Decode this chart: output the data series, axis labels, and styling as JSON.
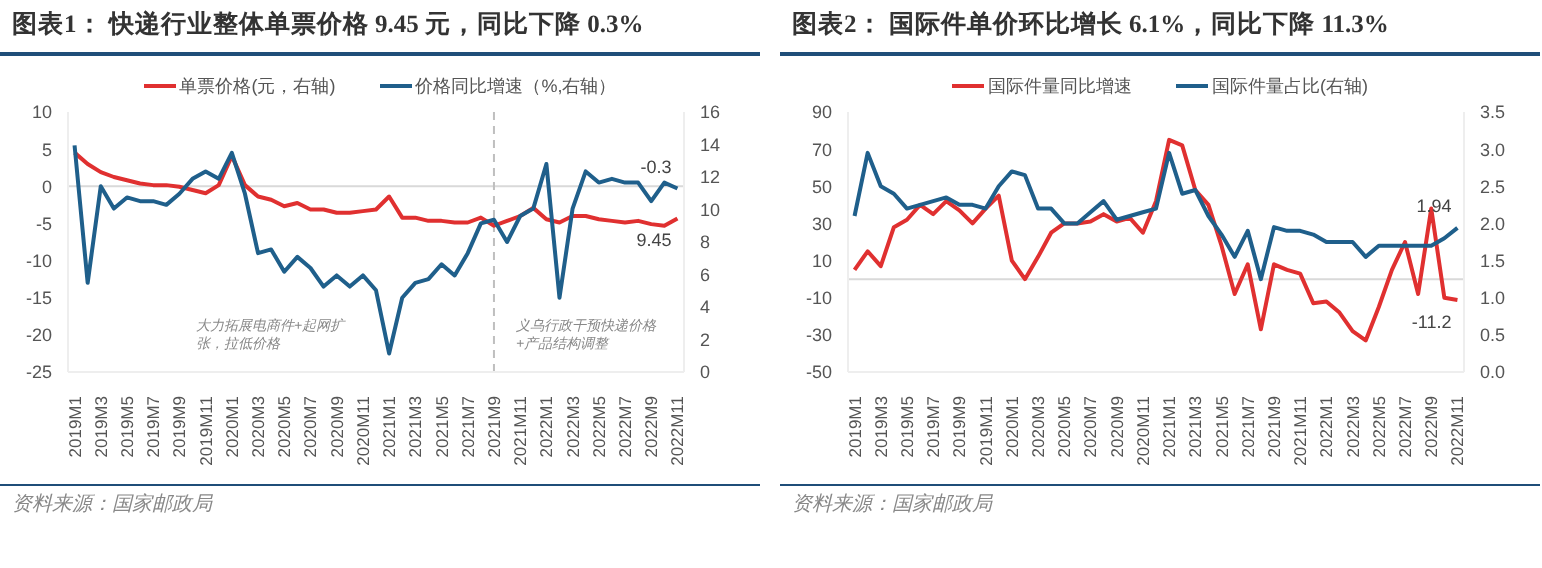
{
  "chart_data": [
    {
      "type": "line",
      "title": "图表1：  快递行业整体单票价格 9.45 元，同比下降 0.3%",
      "categories": [
        "2019M1",
        null,
        "2019M3",
        null,
        "2019M5",
        null,
        "2019M7",
        null,
        "2019M9",
        null,
        "2019M11",
        null,
        "2020M1",
        null,
        "2020M3",
        null,
        "2020M5",
        null,
        "2020M7",
        null,
        "2020M9",
        null,
        "2020M11",
        null,
        "2021M1",
        null,
        "2021M3",
        null,
        "2021M5",
        null,
        "2021M7",
        null,
        "2021M9",
        null,
        "2021M11",
        null,
        "2022M1",
        null,
        "2022M3",
        null,
        "2022M5",
        null,
        "2022M7",
        null,
        "2022M9",
        null,
        "2022M11"
      ],
      "series": [
        {
          "name": "单票价格(元，右轴)",
          "color": "#e03030",
          "axis": "y2",
          "values": [
            13.5,
            12.8,
            12.3,
            12,
            11.8,
            11.6,
            11.5,
            11.5,
            11.4,
            11.2,
            11,
            11.5,
            13.3,
            11.5,
            10.8,
            10.6,
            10.2,
            10.4,
            10,
            10,
            9.8,
            9.8,
            9.9,
            10,
            10.8,
            9.5,
            9.5,
            9.3,
            9.3,
            9.2,
            9.2,
            9.5,
            9,
            9.3,
            9.6,
            10.1,
            9.4,
            9.2,
            9.6,
            9.6,
            9.4,
            9.3,
            9.2,
            9.3,
            9.1,
            9,
            9.45
          ],
          "value_labels": [
            null,
            null,
            null,
            null,
            null,
            null,
            null,
            null,
            null,
            null,
            null,
            null,
            null,
            null,
            null,
            null,
            null,
            null,
            null,
            null,
            null,
            null,
            null,
            null,
            null,
            null,
            null,
            null,
            null,
            null,
            null,
            null,
            null,
            null,
            null,
            null,
            null,
            null,
            null,
            null,
            null,
            null,
            null,
            null,
            null,
            null,
            "9.45"
          ]
        },
        {
          "name": "价格同比增速（%,右轴）",
          "color": "#1f5f8b",
          "values": [
            5.5,
            -13,
            0,
            -3,
            -1.5,
            -2,
            -2,
            -2.5,
            -1,
            1,
            2,
            1,
            4.5,
            -1,
            -9,
            -8.5,
            -11.5,
            -9.5,
            -11,
            -13.5,
            -12,
            -13.5,
            -12,
            -14,
            -22.5,
            -15,
            -13,
            -12.5,
            -10.5,
            -12,
            -9,
            -5,
            -4.5,
            -7.5,
            -4,
            -3,
            3,
            -15,
            -3,
            2,
            0.5,
            1,
            0.5,
            0.5,
            -2,
            0.5,
            -0.3
          ],
          "value_labels": [
            null,
            null,
            null,
            null,
            null,
            null,
            null,
            null,
            null,
            null,
            null,
            null,
            null,
            null,
            null,
            null,
            null,
            null,
            null,
            null,
            null,
            null,
            null,
            null,
            null,
            null,
            null,
            null,
            null,
            null,
            null,
            null,
            null,
            null,
            null,
            null,
            null,
            null,
            null,
            null,
            null,
            null,
            null,
            null,
            null,
            null,
            "-0.3"
          ]
        }
      ],
      "ylim": [
        -25,
        10
      ],
      "yticks": [
        -25,
        -20,
        -15,
        -10,
        -5,
        0,
        5,
        10
      ],
      "y2lim": [
        0,
        16
      ],
      "y2ticks": [
        0,
        2,
        4,
        6,
        8,
        10,
        12,
        14,
        16
      ],
      "ref_lines": [
        {
          "axis": "y",
          "value": 0,
          "color": "#d9d9d9"
        },
        {
          "axis": "x",
          "value": "2021M9",
          "color": "#bfbfbf",
          "line_style": "dashed"
        }
      ],
      "legend": "top",
      "annotations": [
        "大力拓展电商件+起网扩张，拉低价格",
        "义乌行政干预快递价格+产品结构调整",
        "资料来源：国家邮政局"
      ]
    },
    {
      "type": "line",
      "title": "图表2：  国际件单价环比增长 6.1%，同比下降 11.3%",
      "categories": [
        "2019M1",
        null,
        "2019M3",
        null,
        "2019M5",
        null,
        "2019M7",
        null,
        "2019M9",
        null,
        "2019M11",
        null,
        "2020M1",
        null,
        "2020M3",
        null,
        "2020M5",
        null,
        "2020M7",
        null,
        "2020M9",
        null,
        "2020M11",
        null,
        "2021M1",
        null,
        "2021M3",
        null,
        "2021M5",
        null,
        "2021M7",
        null,
        "2021M9",
        null,
        "2021M11",
        null,
        "2022M1",
        null,
        "2022M3",
        null,
        "2022M5",
        null,
        "2022M7",
        null,
        "2022M9",
        null,
        "2022M11"
      ],
      "series": [
        {
          "name": "国际件量同比增速",
          "color": "#e03030",
          "values": [
            5,
            15,
            7,
            28,
            32,
            40,
            35,
            42,
            37,
            30,
            38,
            45,
            10,
            0,
            12,
            25,
            30,
            30,
            31,
            35,
            31,
            33,
            25,
            42,
            75,
            72,
            48,
            40,
            18,
            -8,
            8,
            -27,
            8,
            5,
            3,
            -13,
            -12,
            -18,
            -28,
            -33,
            -15,
            5,
            20,
            -8,
            38,
            -10,
            -11.2
          ],
          "value_labels": [
            null,
            null,
            null,
            null,
            null,
            null,
            null,
            null,
            null,
            null,
            null,
            null,
            null,
            null,
            null,
            null,
            null,
            null,
            null,
            null,
            null,
            null,
            null,
            null,
            null,
            null,
            null,
            null,
            null,
            null,
            null,
            null,
            null,
            null,
            null,
            null,
            null,
            null,
            null,
            null,
            null,
            null,
            null,
            null,
            null,
            null,
            "-11.2"
          ]
        },
        {
          "name": "国际件量占比(右轴)",
          "color": "#1f5f8b",
          "axis": "y2",
          "values": [
            2.1,
            2.95,
            2.5,
            2.4,
            2.2,
            2.25,
            2.3,
            2.35,
            2.25,
            2.25,
            2.2,
            2.5,
            2.7,
            2.65,
            2.2,
            2.2,
            2,
            2,
            2.15,
            2.3,
            2.05,
            2.1,
            2.15,
            2.2,
            2.95,
            2.4,
            2.45,
            2.1,
            1.85,
            1.55,
            1.9,
            1.25,
            1.95,
            1.9,
            1.9,
            1.85,
            1.75,
            1.75,
            1.75,
            1.55,
            1.7,
            1.7,
            1.7,
            1.7,
            1.7,
            1.8,
            1.94
          ],
          "value_labels": [
            null,
            null,
            null,
            null,
            null,
            null,
            null,
            null,
            null,
            null,
            null,
            null,
            null,
            null,
            null,
            null,
            null,
            null,
            null,
            null,
            null,
            null,
            null,
            null,
            null,
            null,
            null,
            null,
            null,
            null,
            null,
            null,
            null,
            null,
            null,
            null,
            null,
            null,
            null,
            null,
            null,
            null,
            null,
            null,
            null,
            null,
            "1.94"
          ]
        }
      ],
      "ylim": [
        -50,
        90
      ],
      "yticks": [
        -50,
        -30,
        -10,
        10,
        30,
        50,
        70,
        90
      ],
      "y2lim": [
        0,
        3.5
      ],
      "y2ticks": [
        {
          "value": 0,
          "label": "0.0"
        },
        0.5,
        {
          "value": 1,
          "label": "1.0"
        },
        1.5,
        {
          "value": 2,
          "label": "2.0"
        },
        2.5,
        {
          "value": 3,
          "label": "3.0"
        },
        3.5
      ],
      "ref_lines": [
        {
          "axis": "y",
          "value": 0,
          "color": "#d9d9d9"
        }
      ],
      "legend": "top",
      "annotations": [
        "资料来源：国家邮政局"
      ]
    }
  ]
}
